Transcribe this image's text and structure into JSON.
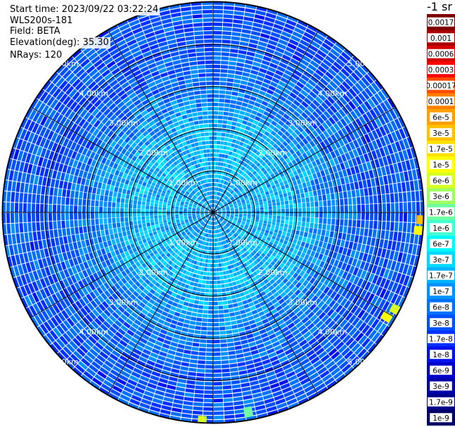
{
  "header": {
    "start_time": "Start time: 2023/09/22 03:22:24",
    "instrument": "WLS200s-181",
    "field": "Field: BETA",
    "elevation": "Elevation(deg): 35.30",
    "nrays": "NRays: 120"
  },
  "chart_data": {
    "type": "heatmap",
    "projection": "polar-ppi",
    "n_rays": 120,
    "range_rings_km": [
      1,
      2,
      3,
      4,
      5
    ],
    "ring_labels": [
      "1.00km",
      "2.00km",
      "3.00km",
      "4.00km",
      "5.00km"
    ],
    "max_range_km": 5.0,
    "colorbar": {
      "unit": "-1 sr",
      "scale": "log",
      "labels": [
        "0.0017",
        "0.001",
        "0.0006",
        "0.0003",
        "0.00017",
        "0.0001",
        "6e-5",
        "3e-5",
        "1.7e-5",
        "1e-5",
        "6e-6",
        "3e-6",
        "1.7e-6",
        "1e-6",
        "6e-7",
        "3e-7",
        "1.7e-7",
        "1e-7",
        "6e-8",
        "3e-8",
        "1.7e-8",
        "1e-8",
        "6e-9",
        "3e-9",
        "1.7e-9",
        "1e-9"
      ],
      "colors": [
        "#7f0000",
        "#aa0000",
        "#d40000",
        "#ff0000",
        "#ff4a00",
        "#ff8000",
        "#ffa000",
        "#ffc000",
        "#ffe000",
        "#ffff00",
        "#d8ff20",
        "#a0ff60",
        "#70ffa0",
        "#40ffd0",
        "#00f8ff",
        "#00d8ff",
        "#00b4ff",
        "#0090ff",
        "#0070ff",
        "#0050ff",
        "#0030ff",
        "#0010ee",
        "#0000cc",
        "#0000aa",
        "#00008a",
        "#000066"
      ]
    },
    "field_levels": [
      {
        "range_km": 0.0,
        "value": "1e-7"
      },
      {
        "range_km": 1.0,
        "value": "1.7e-7"
      },
      {
        "range_km": 2.0,
        "value": "1.7e-7"
      },
      {
        "range_km": 3.0,
        "value": "6e-8"
      },
      {
        "range_km": 4.0,
        "value": "3e-8"
      },
      {
        "range_km": 5.0,
        "value": "3e-8"
      }
    ],
    "hotspots": [
      {
        "azimuth_deg": 92,
        "range_km": 4.95,
        "value": "3e-5"
      },
      {
        "azimuth_deg": 95,
        "range_km": 4.9,
        "value": "1e-5"
      },
      {
        "azimuth_deg": 118,
        "range_km": 4.9,
        "value": "6e-6"
      },
      {
        "azimuth_deg": 121,
        "range_km": 4.8,
        "value": "1e-5"
      },
      {
        "azimuth_deg": 183,
        "range_km": 4.95,
        "value": "6e-6"
      },
      {
        "azimuth_deg": 170,
        "range_km": 4.8,
        "value": "1.7e-6"
      }
    ]
  }
}
